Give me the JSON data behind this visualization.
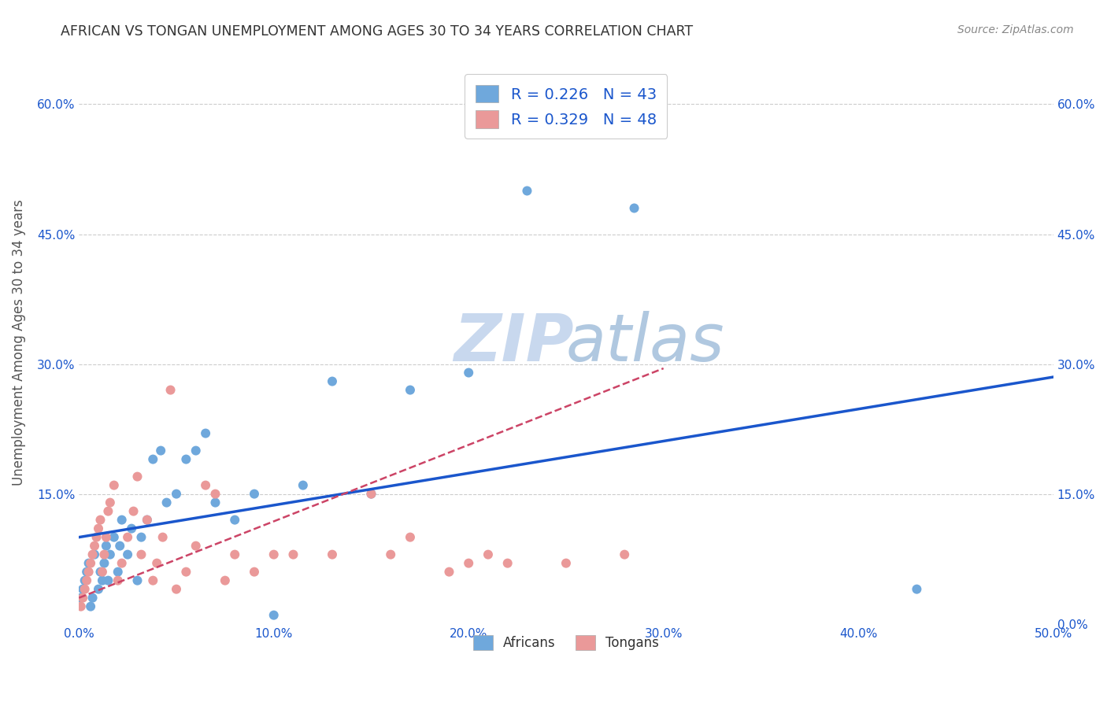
{
  "title": "AFRICAN VS TONGAN UNEMPLOYMENT AMONG AGES 30 TO 34 YEARS CORRELATION CHART",
  "source": "Source: ZipAtlas.com",
  "ylabel": "Unemployment Among Ages 30 to 34 years",
  "xlim": [
    0.0,
    0.5
  ],
  "ylim": [
    0.0,
    0.65
  ],
  "xticks": [
    0.0,
    0.1,
    0.2,
    0.3,
    0.4,
    0.5
  ],
  "yticks": [
    0.15,
    0.3,
    0.45,
    0.6
  ],
  "xtick_labels": [
    "0.0%",
    "10.0%",
    "20.0%",
    "30.0%",
    "40.0%",
    "50.0%"
  ],
  "ytick_labels": [
    "15.0%",
    "30.0%",
    "45.0%",
    "60.0%"
  ],
  "right_yticks": [
    0.0,
    0.15,
    0.3,
    0.45,
    0.6
  ],
  "right_ytick_labels": [
    "0.0%",
    "15.0%",
    "30.0%",
    "45.0%",
    "60.0%"
  ],
  "african_R": 0.226,
  "african_N": 43,
  "tongan_R": 0.329,
  "tongan_N": 48,
  "african_color": "#6fa8dc",
  "tongan_color": "#ea9999",
  "african_line_color": "#1a56cc",
  "tongan_line_color": "#cc4466",
  "tick_color": "#1a56cc",
  "background_color": "#ffffff",
  "watermark_color_zip": "#c8d8ee",
  "watermark_color_atlas": "#b0c8e0",
  "african_line_y0": 0.1,
  "african_line_y1": 0.285,
  "tongan_line_x0": 0.0,
  "tongan_line_y0": 0.03,
  "tongan_line_x1": 0.3,
  "tongan_line_y1": 0.295,
  "africans_x": [
    0.001,
    0.002,
    0.003,
    0.004,
    0.005,
    0.006,
    0.007,
    0.008,
    0.01,
    0.011,
    0.012,
    0.013,
    0.014,
    0.015,
    0.016,
    0.018,
    0.02,
    0.021,
    0.022,
    0.025,
    0.027,
    0.03,
    0.032,
    0.035,
    0.038,
    0.042,
    0.045,
    0.05,
    0.055,
    0.06,
    0.065,
    0.07,
    0.08,
    0.09,
    0.1,
    0.115,
    0.13,
    0.15,
    0.17,
    0.2,
    0.23,
    0.285,
    0.43
  ],
  "africans_y": [
    0.03,
    0.04,
    0.05,
    0.06,
    0.07,
    0.02,
    0.03,
    0.08,
    0.04,
    0.06,
    0.05,
    0.07,
    0.09,
    0.05,
    0.08,
    0.1,
    0.06,
    0.09,
    0.12,
    0.08,
    0.11,
    0.05,
    0.1,
    0.12,
    0.19,
    0.2,
    0.14,
    0.15,
    0.19,
    0.2,
    0.22,
    0.14,
    0.12,
    0.15,
    0.01,
    0.16,
    0.28,
    0.15,
    0.27,
    0.29,
    0.5,
    0.48,
    0.04
  ],
  "tongans_x": [
    0.001,
    0.002,
    0.003,
    0.004,
    0.005,
    0.006,
    0.007,
    0.008,
    0.009,
    0.01,
    0.011,
    0.012,
    0.013,
    0.014,
    0.015,
    0.016,
    0.018,
    0.02,
    0.022,
    0.025,
    0.028,
    0.03,
    0.032,
    0.035,
    0.038,
    0.04,
    0.043,
    0.047,
    0.05,
    0.055,
    0.06,
    0.065,
    0.07,
    0.075,
    0.08,
    0.09,
    0.1,
    0.11,
    0.13,
    0.15,
    0.16,
    0.17,
    0.19,
    0.2,
    0.21,
    0.22,
    0.25,
    0.28
  ],
  "tongans_y": [
    0.02,
    0.03,
    0.04,
    0.05,
    0.06,
    0.07,
    0.08,
    0.09,
    0.1,
    0.11,
    0.12,
    0.06,
    0.08,
    0.1,
    0.13,
    0.14,
    0.16,
    0.05,
    0.07,
    0.1,
    0.13,
    0.17,
    0.08,
    0.12,
    0.05,
    0.07,
    0.1,
    0.27,
    0.04,
    0.06,
    0.09,
    0.16,
    0.15,
    0.05,
    0.08,
    0.06,
    0.08,
    0.08,
    0.08,
    0.15,
    0.08,
    0.1,
    0.06,
    0.07,
    0.08,
    0.07,
    0.07,
    0.08
  ]
}
